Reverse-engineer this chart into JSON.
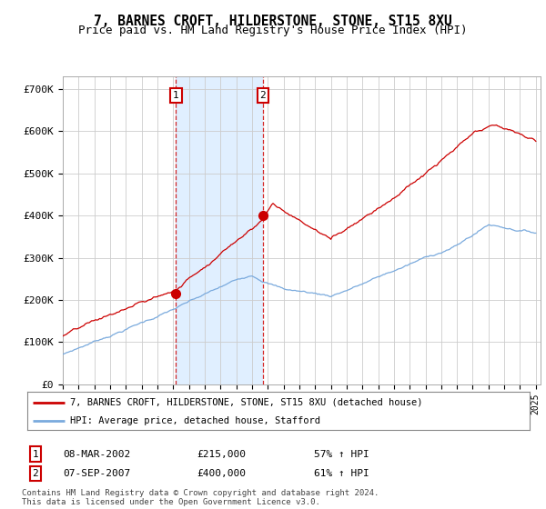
{
  "title": "7, BARNES CROFT, HILDERSTONE, STONE, ST15 8XU",
  "subtitle": "Price paid vs. HM Land Registry's House Price Index (HPI)",
  "title_fontsize": 10.5,
  "subtitle_fontsize": 9,
  "ylim": [
    0,
    730000
  ],
  "yticks": [
    0,
    100000,
    200000,
    300000,
    400000,
    500000,
    600000,
    700000
  ],
  "ytick_labels": [
    "£0",
    "£100K",
    "£200K",
    "£300K",
    "£400K",
    "£500K",
    "£600K",
    "£700K"
  ],
  "x_start_year": 1995,
  "x_end_year": 2025,
  "sale1_date": 2002.18,
  "sale1_price": 215000,
  "sale2_date": 2007.68,
  "sale2_price": 400000,
  "sale1_date_str": "08-MAR-2002",
  "sale2_date_str": "07-SEP-2007",
  "sale1_hpi_pct": "57% ↑ HPI",
  "sale2_hpi_pct": "61% ↑ HPI",
  "property_color": "#cc0000",
  "hpi_color": "#7aaadd",
  "vline_color": "#cc0000",
  "shade_color": "#ddeeff",
  "background_color": "#ffffff",
  "grid_color": "#cccccc",
  "legend_label_property": "7, BARNES CROFT, HILDERSTONE, STONE, ST15 8XU (detached house)",
  "legend_label_hpi": "HPI: Average price, detached house, Stafford",
  "footer_text": "Contains HM Land Registry data © Crown copyright and database right 2024.\nThis data is licensed under the Open Government Licence v3.0."
}
